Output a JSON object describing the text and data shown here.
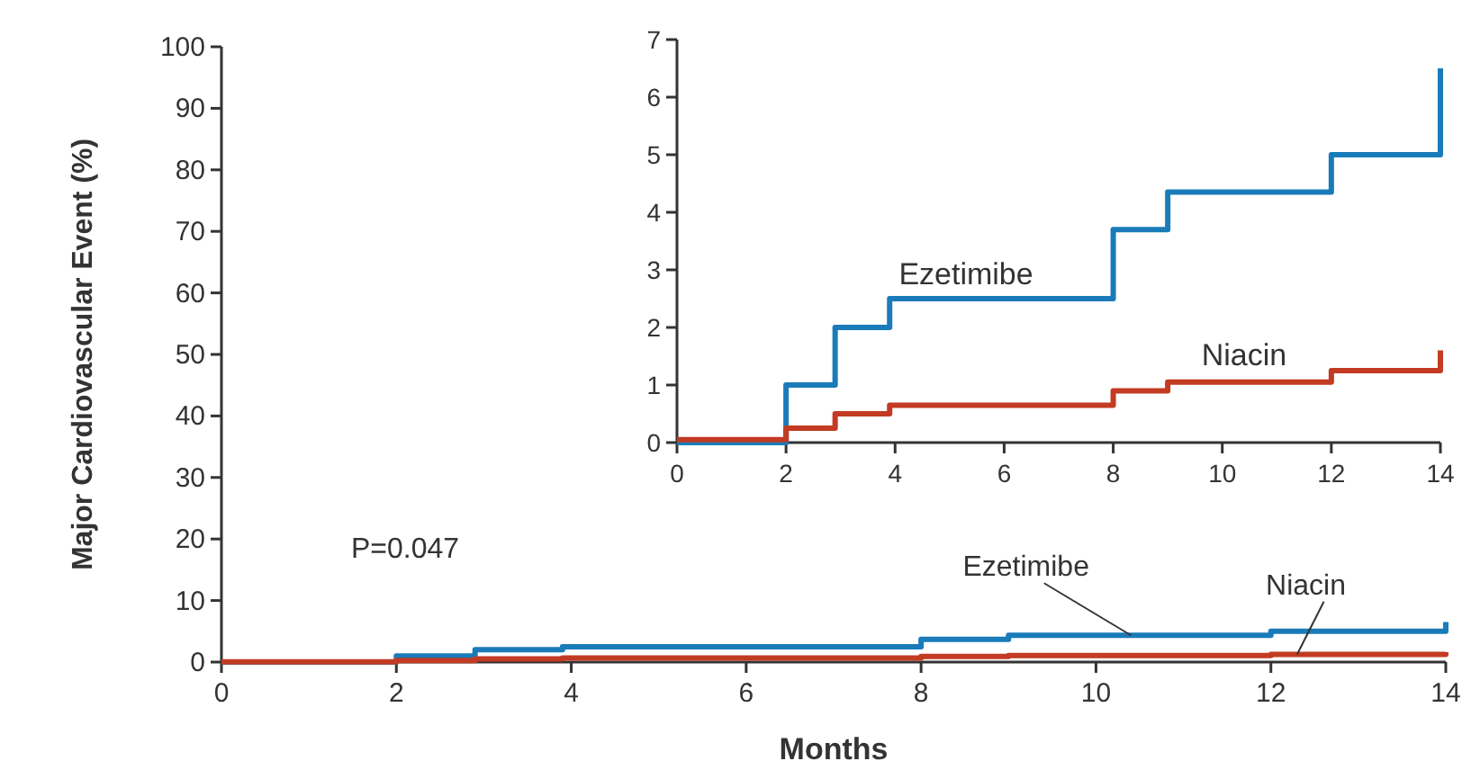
{
  "chart_data": [
    {
      "type": "step",
      "ylabel": "Major Cardiovascular Event (%)",
      "xlabel": "Months",
      "xlim": [
        0,
        14
      ],
      "xticks": [
        0,
        2,
        4,
        6,
        8,
        10,
        12,
        14
      ],
      "ylim": [
        0,
        100
      ],
      "yticks": [
        0,
        10,
        20,
        30,
        40,
        50,
        60,
        70,
        80,
        90,
        100
      ],
      "annotations": [
        "P=0.047"
      ],
      "series": [
        {
          "name": "Ezetimibe",
          "color": "#1a7bb9",
          "x": [
            0,
            2,
            2.9,
            3.9,
            8,
            9,
            12,
            14
          ],
          "values": [
            0,
            1.0,
            2.0,
            2.5,
            3.7,
            4.35,
            5.0,
            6.5
          ]
        },
        {
          "name": "Niacin",
          "color": "#c23b22",
          "x": [
            0,
            2,
            2.9,
            3.9,
            8,
            9,
            12,
            14
          ],
          "values": [
            0.05,
            0.25,
            0.5,
            0.65,
            0.9,
            1.05,
            1.25,
            1.6
          ]
        }
      ]
    },
    {
      "type": "step",
      "xlim": [
        0,
        14
      ],
      "xticks": [
        0,
        2,
        4,
        6,
        8,
        10,
        12,
        14
      ],
      "ylim": [
        0,
        7
      ],
      "yticks": [
        0,
        1,
        2,
        3,
        4,
        5,
        6,
        7
      ],
      "series": [
        {
          "name": "Ezetimibe",
          "color": "#1a7bb9",
          "x": [
            0,
            2,
            2.9,
            3.9,
            8,
            9,
            12,
            14
          ],
          "values": [
            0,
            1.0,
            2.0,
            2.5,
            3.7,
            4.35,
            5.0,
            6.5
          ]
        },
        {
          "name": "Niacin",
          "color": "#c23b22",
          "x": [
            0,
            2,
            2.9,
            3.9,
            8,
            9,
            12,
            14
          ],
          "values": [
            0.05,
            0.25,
            0.5,
            0.65,
            0.9,
            1.05,
            1.25,
            1.6
          ]
        }
      ]
    }
  ]
}
